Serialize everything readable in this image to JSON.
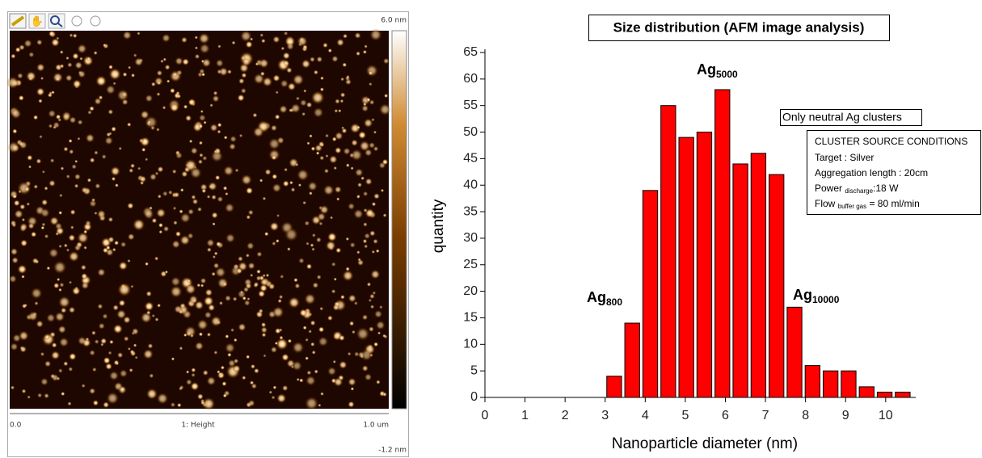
{
  "afm_panel": {
    "scale_max": "6.0 nm",
    "scale_min": "-1.2 nm",
    "x_start": "0.0",
    "channel": "1: Height",
    "x_end": "1.0 um"
  },
  "chart_data": {
    "type": "histogram",
    "title": "Size distribution (AFM image analysis)",
    "x_label": "Nanoparticle diameter (nm)",
    "y_label": "quantity",
    "bins": [
      3,
      3.45,
      3.9,
      4.35,
      4.8,
      5.25,
      5.7,
      6.15,
      6.6,
      7.05,
      7.5,
      7.95,
      8.4,
      8.85,
      9.3,
      9.75,
      10.2,
      10.65
    ],
    "values": [
      4,
      14,
      39,
      55,
      49,
      50,
      58,
      44,
      46,
      42,
      17,
      6,
      5,
      5,
      2,
      1,
      1
    ],
    "color": "#ff0000",
    "xlim": [
      0,
      10.75
    ],
    "xticks": [
      0,
      1,
      2,
      3,
      4,
      5,
      6,
      7,
      8,
      9,
      10
    ],
    "ylim": [
      0,
      65
    ],
    "yticks": [
      0,
      5,
      10,
      15,
      20,
      25,
      30,
      35,
      40,
      45,
      50,
      55,
      60,
      65
    ],
    "annotations": [
      {
        "text": "Ag",
        "sub": "800"
      },
      {
        "text": "Ag",
        "sub": "5000"
      },
      {
        "text": "Ag",
        "sub": "10000"
      }
    ],
    "note": "Only neutral Ag clusters",
    "conditions": {
      "heading": "CLUSTER SOURCE CONDITIONS",
      "target": "Target : Silver",
      "length": "Aggregation length : 20cm",
      "power": "Power",
      "power_sub": "discharge",
      "power_value": ":18 W",
      "flow": "Flow",
      "flow_sub": "buffer gas",
      "flow_value": " = 80 ml/min"
    }
  }
}
